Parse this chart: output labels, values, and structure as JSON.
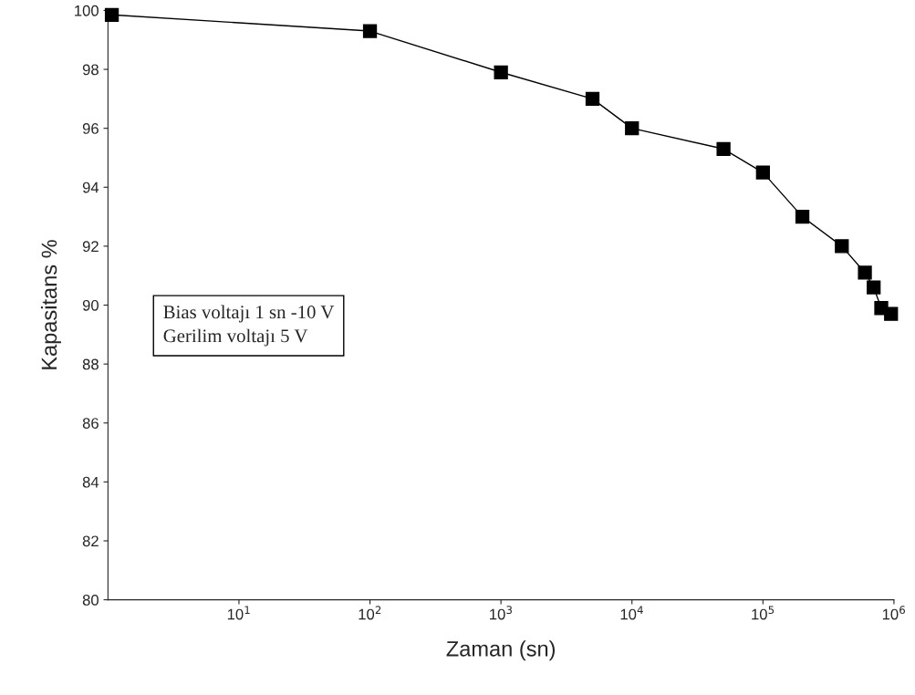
{
  "chart_data": {
    "type": "line",
    "xlabel": "Zaman (sn)",
    "ylabel": "Kapasitans %",
    "x": [
      1.07,
      100,
      1000,
      5000,
      10000,
      50000,
      100000,
      200000,
      400000,
      600000,
      700000,
      800000,
      950000
    ],
    "series": [
      {
        "color": "#000000",
        "values": [
          99.85,
          99.3,
          97.9,
          97.0,
          96.0,
          95.3,
          94.5,
          93.0,
          92.0,
          91.1,
          90.6,
          89.9,
          89.7
        ]
      }
    ],
    "log": "x",
    "xlim": [
      1,
      1000000
    ],
    "xticks": [
      {
        "value": 10,
        "label": "10$^{1}$"
      },
      {
        "value": 100,
        "label": "10$^{2}$"
      },
      {
        "value": 1000,
        "label": "10$^{3}$"
      },
      {
        "value": 10000,
        "label": "10$^{4}$"
      },
      {
        "value": 100000,
        "label": "10$^{5}$"
      },
      {
        "value": 1000000,
        "label": "10$^{6}$"
      }
    ],
    "ylim": [
      80,
      100
    ],
    "yticks": [
      80,
      82,
      84,
      86,
      88,
      90,
      92,
      94,
      96,
      98,
      100
    ],
    "marker": "square",
    "line_style": "solid",
    "grid": false,
    "legend": false,
    "annotations": [
      "Bias voltajı 1 sn -10 V",
      "Gerilim voltajı 5 V"
    ]
  }
}
